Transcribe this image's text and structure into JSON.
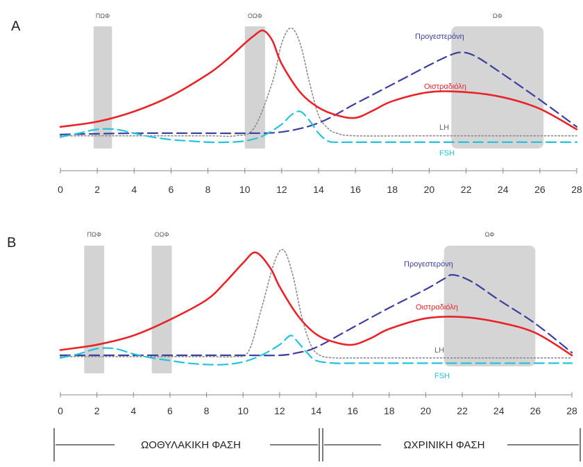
{
  "chart_data": [
    {
      "type": "line",
      "panel_label": "A",
      "xlim": [
        0,
        28
      ],
      "x_ticks": [
        0,
        2,
        4,
        6,
        8,
        10,
        12,
        14,
        16,
        18,
        20,
        22,
        24,
        26,
        28
      ],
      "bands": [
        {
          "label": "ΠΩΦ",
          "x_start": 1.8,
          "x_end": 2.8
        },
        {
          "label": "ΟΩΦ",
          "x_start": 10.0,
          "x_end": 11.1
        },
        {
          "label": "ΩΦ",
          "x_start": 21.2,
          "x_end": 26.2
        }
      ],
      "series": [
        {
          "name": "Οιστραδιόλη",
          "color": "#e8232a",
          "style": "solid",
          "x": [
            0,
            2,
            4,
            6,
            8,
            9,
            10,
            10.5,
            11,
            11.5,
            12,
            13,
            14,
            15,
            16,
            17,
            18,
            20,
            22,
            24,
            26,
            28
          ],
          "y": [
            0.05,
            0.09,
            0.17,
            0.29,
            0.46,
            0.57,
            0.7,
            0.76,
            0.8,
            0.72,
            0.54,
            0.32,
            0.2,
            0.14,
            0.12,
            0.18,
            0.25,
            0.32,
            0.32,
            0.28,
            0.19,
            0.03
          ]
        },
        {
          "name": "Προγεστερόνη",
          "color": "#3c3f9e",
          "style": "dashed",
          "x": [
            0,
            4,
            8,
            10,
            12,
            14,
            16,
            18,
            20,
            21,
            21.7,
            22.5,
            24,
            26,
            28
          ],
          "y": [
            -0.01,
            0.0,
            0.0,
            0.0,
            0.01,
            0.08,
            0.23,
            0.38,
            0.53,
            0.6,
            0.63,
            0.6,
            0.46,
            0.26,
            0.05
          ]
        },
        {
          "name": "LH",
          "color": "#8a8a8a",
          "style": "dotted",
          "x": [
            0,
            4,
            8,
            9.5,
            10.5,
            11.5,
            12,
            12.5,
            13,
            13.5,
            14,
            14.5,
            15,
            16,
            20,
            28
          ],
          "y": [
            -0.02,
            -0.02,
            -0.02,
            -0.02,
            0.04,
            0.4,
            0.7,
            0.82,
            0.7,
            0.4,
            0.14,
            0.04,
            0.0,
            -0.02,
            -0.02,
            -0.02
          ]
        },
        {
          "name": "FSH",
          "color": "#22c3dd",
          "style": "dashed",
          "x": [
            0,
            1,
            2,
            3,
            4,
            5,
            6,
            7,
            8,
            9,
            10,
            11,
            12,
            12.5,
            13,
            13.5,
            14,
            14.5,
            15,
            16,
            20,
            28
          ],
          "y": [
            -0.03,
            0.0,
            0.03,
            0.03,
            0.0,
            -0.03,
            -0.05,
            -0.06,
            -0.07,
            -0.07,
            -0.06,
            -0.02,
            0.07,
            0.14,
            0.17,
            0.1,
            0.0,
            -0.06,
            -0.07,
            -0.07,
            -0.07,
            -0.07
          ]
        }
      ]
    },
    {
      "type": "line",
      "panel_label": "B",
      "xlim": [
        0,
        28
      ],
      "x_ticks": [
        0,
        2,
        4,
        6,
        8,
        10,
        12,
        14,
        16,
        18,
        20,
        22,
        24,
        26,
        28
      ],
      "bands": [
        {
          "label": "ΠΩΦ",
          "x_start": 1.3,
          "x_end": 2.4
        },
        {
          "label": "ΟΩΦ",
          "x_start": 5.0,
          "x_end": 6.1
        },
        {
          "label": "ΩΦ",
          "x_start": 21.0,
          "x_end": 26.0
        }
      ],
      "series": [
        {
          "name": "Οιστραδιόλη",
          "color": "#e8232a",
          "style": "solid",
          "x": [
            0,
            2,
            4,
            6,
            8,
            9,
            10,
            10.7,
            11.5,
            12,
            13,
            14,
            15,
            16,
            17,
            18,
            20,
            22,
            24,
            26,
            28
          ],
          "y": [
            0.04,
            0.08,
            0.15,
            0.27,
            0.42,
            0.55,
            0.7,
            0.78,
            0.66,
            0.52,
            0.3,
            0.16,
            0.1,
            0.08,
            0.13,
            0.2,
            0.28,
            0.29,
            0.25,
            0.17,
            0.0
          ]
        },
        {
          "name": "Προγεστερόνη",
          "color": "#3c3f9e",
          "style": "dashed",
          "x": [
            0,
            4,
            8,
            10,
            12,
            13,
            14,
            16,
            18,
            20,
            21,
            21.5,
            22.5,
            24,
            26,
            28
          ],
          "y": [
            0.0,
            0.0,
            0.0,
            0.0,
            0.0,
            0.02,
            0.06,
            0.21,
            0.36,
            0.5,
            0.58,
            0.61,
            0.56,
            0.42,
            0.24,
            0.02
          ]
        },
        {
          "name": "LH",
          "color": "#8a8a8a",
          "style": "dotted",
          "x": [
            0,
            4,
            8,
            9.5,
            10.3,
            11,
            11.7,
            12.2,
            12.7,
            13.2,
            13.7,
            14.2,
            15,
            16,
            20,
            28
          ],
          "y": [
            -0.01,
            -0.01,
            -0.01,
            -0.01,
            0.03,
            0.35,
            0.7,
            0.8,
            0.62,
            0.3,
            0.08,
            0.0,
            -0.02,
            -0.02,
            -0.02,
            -0.02
          ]
        },
        {
          "name": "FSH",
          "color": "#22c3dd",
          "style": "dashed",
          "x": [
            0,
            1,
            2,
            3,
            4,
            5,
            6,
            7,
            8,
            9,
            10,
            11,
            12,
            12.6,
            13,
            13.5,
            14,
            15,
            16,
            20,
            28
          ],
          "y": [
            -0.02,
            0.01,
            0.05,
            0.05,
            0.01,
            -0.02,
            -0.04,
            -0.06,
            -0.07,
            -0.07,
            -0.05,
            0.0,
            0.08,
            0.15,
            0.1,
            0.02,
            -0.04,
            -0.06,
            -0.06,
            -0.06,
            -0.06
          ]
        }
      ]
    }
  ],
  "phases": [
    {
      "label": "ΩΟΘΥΛΑΚΙΚΗ ΦΑΣΗ",
      "x_start": 0,
      "x_end": 14
    },
    {
      "label": "ΩΧΡΙΝΙΚΗ ΦΑΣΗ",
      "x_start": 14,
      "x_end": 28
    }
  ],
  "colors": {
    "band": "#c9c9c9",
    "axis": "#888888",
    "phase_line": "#333333"
  }
}
